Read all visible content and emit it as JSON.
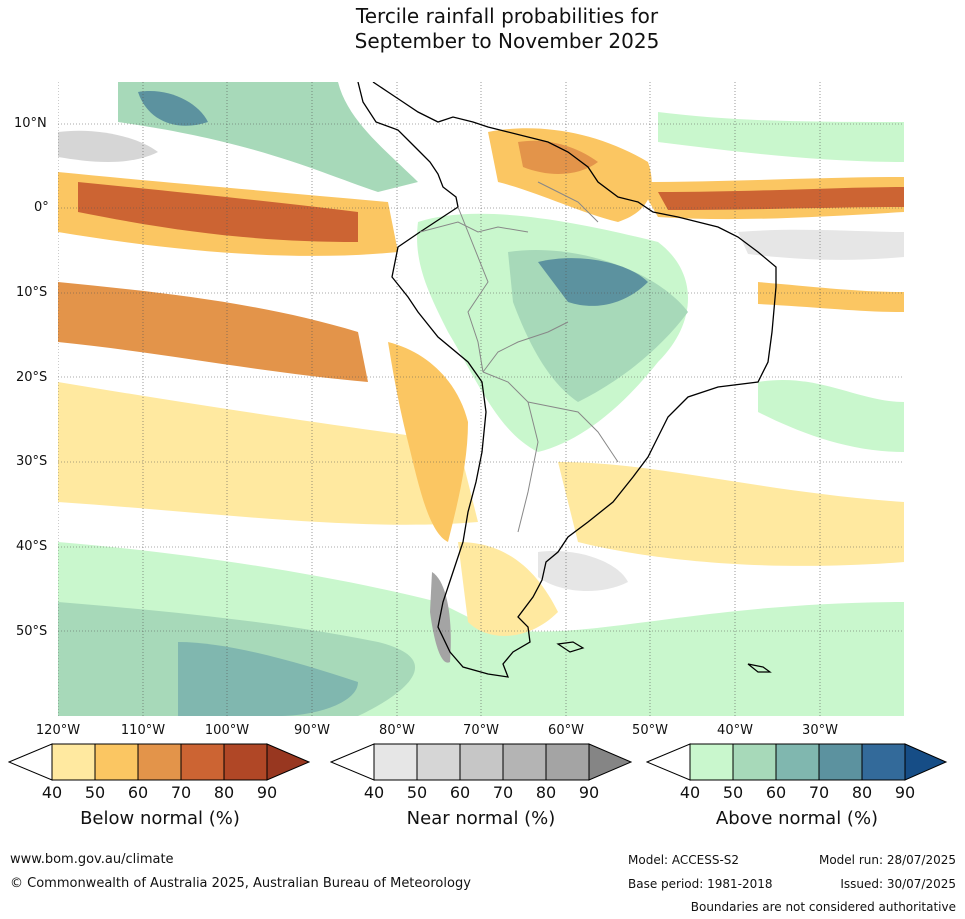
{
  "title_line1": "Tercile rainfall probabilities for",
  "title_line2": "September to November 2025",
  "lat_labels": [
    "10°N",
    "0°",
    "10°S",
    "20°S",
    "30°S",
    "40°S",
    "50°S"
  ],
  "lon_labels": [
    "120°W",
    "110°W",
    "100°W",
    "90°W",
    "80°W",
    "70°W",
    "60°W",
    "50°W",
    "40°W",
    "30°W"
  ],
  "colorbars": {
    "below": {
      "title": "Below normal (%)",
      "ticks": [
        "40",
        "50",
        "60",
        "70",
        "80",
        "90"
      ],
      "colors": [
        "#ffe9a0",
        "#fbc662",
        "#e3944a",
        "#cc6433",
        "#b04726",
        "#983720"
      ]
    },
    "near": {
      "title": "Near normal (%)",
      "ticks": [
        "40",
        "50",
        "60",
        "70",
        "80",
        "90"
      ],
      "colors": [
        "#e6e6e6",
        "#d6d6d6",
        "#c6c6c6",
        "#b4b4b4",
        "#a4a4a4",
        "#858585"
      ]
    },
    "above": {
      "title": "Above normal (%)",
      "ticks": [
        "40",
        "50",
        "60",
        "70",
        "80",
        "90"
      ],
      "colors": [
        "#c9f7cd",
        "#a7d9b9",
        "#80b7af",
        "#5c929f",
        "#336a9a",
        "#164d86"
      ]
    }
  },
  "footer": {
    "website": "www.bom.gov.au/climate",
    "copyright": "© Commonwealth of Australia 2025, Australian Bureau of Meteorology",
    "model": "Model: ACCESS-S2",
    "model_run": "Model run: 28/07/2025",
    "base_period": "Base period: 1981-2018",
    "issued": "Issued: 30/07/2025",
    "disclaimer": "Boundaries are not considered authoritative"
  }
}
